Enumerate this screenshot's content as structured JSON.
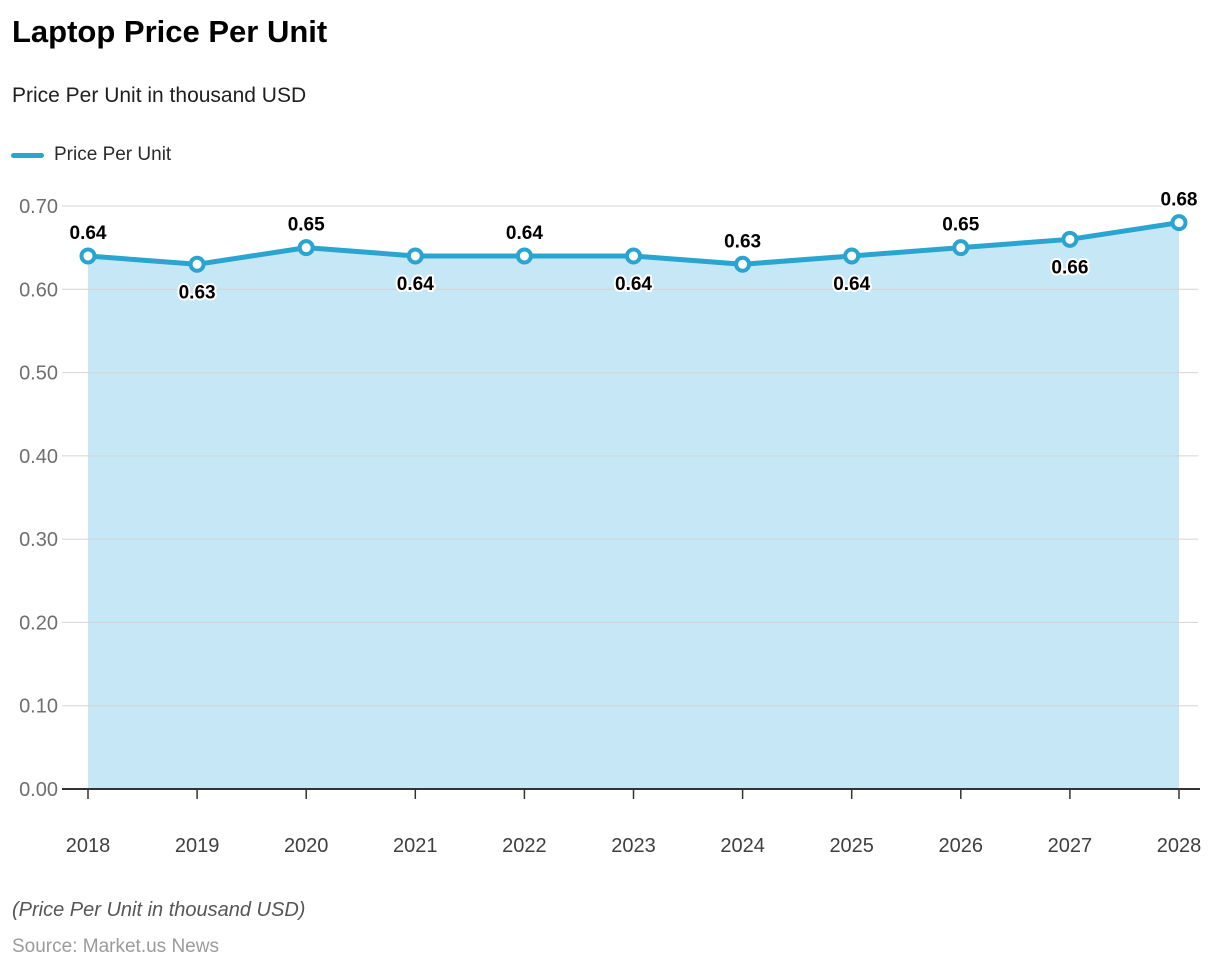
{
  "header": {
    "title": "Laptop Price Per Unit",
    "subtitle": "Price Per Unit in thousand USD"
  },
  "legend": {
    "label": "Price Per Unit"
  },
  "footer": {
    "note": "(Price Per Unit in thousand USD)",
    "source": "Source: Market.us News"
  },
  "colors": {
    "line": "#2AA4D0",
    "marker_fill": "#FFFFFF",
    "area_fill": "#C6E7F5",
    "grid": "#D4D4D4",
    "axis": "#333333",
    "y_label": "#6F6F6F",
    "x_label": "#3F3F3F",
    "data_label": "#000000"
  },
  "chart_data": {
    "type": "area",
    "title": "Laptop Price Per Unit",
    "subtitle": "Price Per Unit in thousand USD",
    "x": [
      2018,
      2019,
      2020,
      2021,
      2022,
      2023,
      2024,
      2025,
      2026,
      2027,
      2028
    ],
    "series": [
      {
        "name": "Price Per Unit",
        "values": [
          0.64,
          0.63,
          0.65,
          0.64,
          0.64,
          0.64,
          0.63,
          0.64,
          0.65,
          0.66,
          0.68
        ]
      }
    ],
    "data_label_positions": [
      "above",
      "below",
      "above",
      "below",
      "above",
      "below",
      "above",
      "below",
      "above",
      "below",
      "above"
    ],
    "ylim": [
      0.0,
      0.7
    ],
    "ytick_step": 0.1,
    "ytick_labels": [
      "0.00",
      "0.10",
      "0.20",
      "0.30",
      "0.40",
      "0.50",
      "0.60",
      "0.70"
    ],
    "grid": true,
    "legend_position": "top-left",
    "xlabel": "",
    "ylabel": ""
  }
}
